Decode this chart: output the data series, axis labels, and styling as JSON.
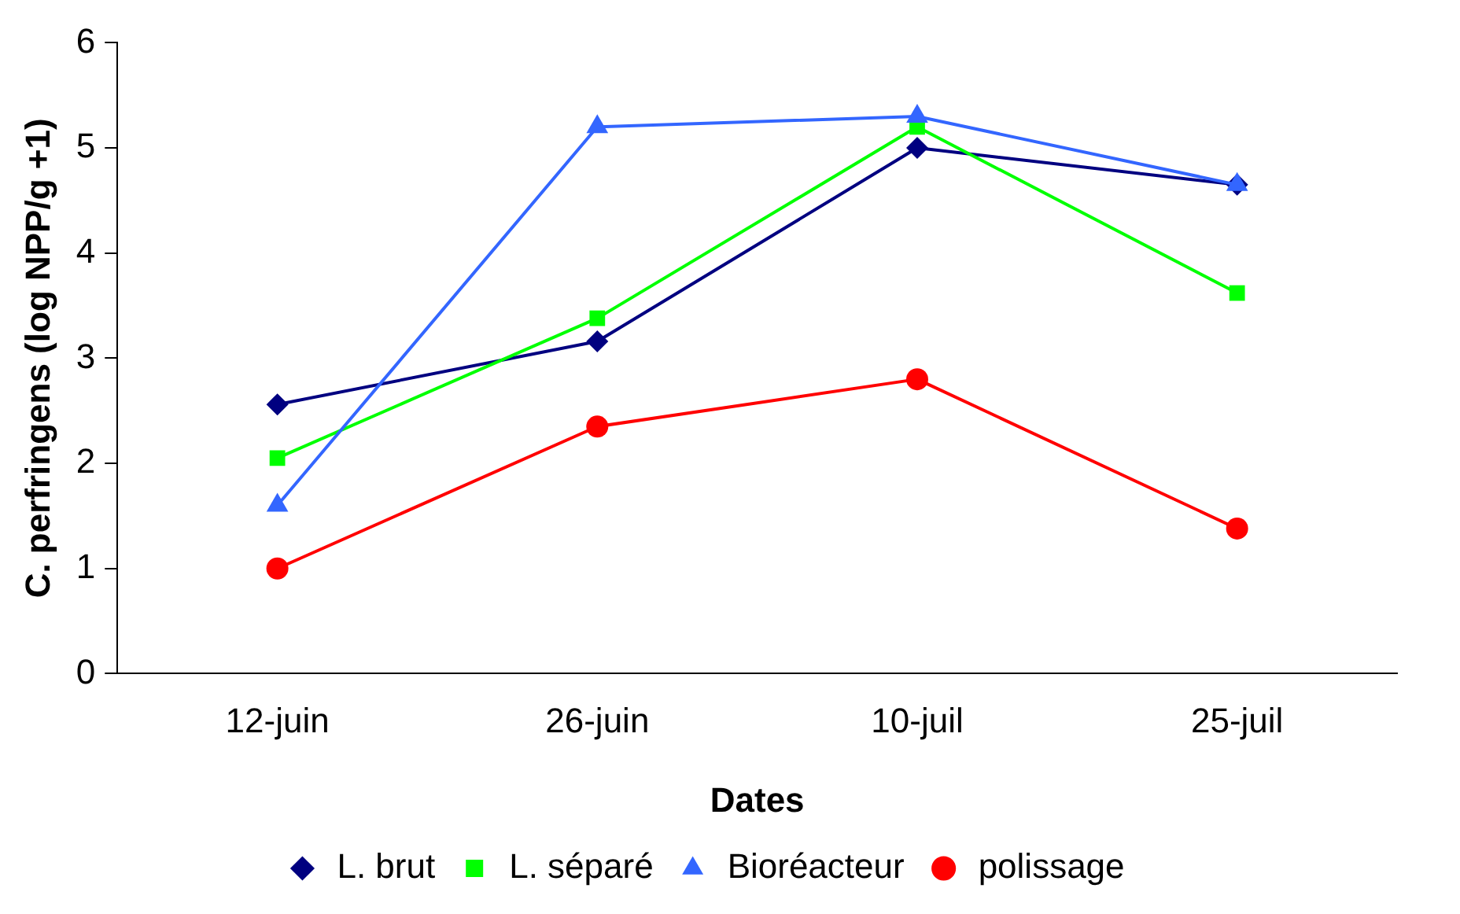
{
  "chart_data": {
    "type": "line",
    "xlabel": "Dates",
    "ylabel": "C. perfringens (log NPP/g +1)",
    "categories": [
      "12-juin",
      "26-juin",
      "10-juil",
      "25-juil"
    ],
    "series": [
      {
        "name": "L. brut",
        "color": "#000080",
        "marker": "diamond",
        "values": [
          2.56,
          3.16,
          5.0,
          4.65
        ]
      },
      {
        "name": "L. séparé",
        "color": "#00ff00",
        "marker": "square",
        "values": [
          2.05,
          3.38,
          5.2,
          3.62
        ]
      },
      {
        "name": "Bioréacteur",
        "color": "#3366ff",
        "marker": "triangle",
        "values": [
          1.6,
          5.2,
          5.3,
          4.65
        ]
      },
      {
        "name": "polissage",
        "color": "#ff0000",
        "marker": "circle",
        "values": [
          1.0,
          2.35,
          2.8,
          1.38
        ]
      }
    ],
    "ylim": [
      0,
      6
    ],
    "yticks": [
      0,
      1,
      2,
      3,
      4,
      5,
      6
    ],
    "grid": false,
    "legend": "bottom",
    "line_style": "solid"
  }
}
